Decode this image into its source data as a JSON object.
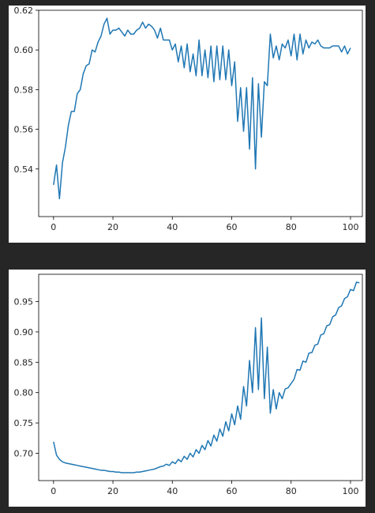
{
  "chart_data": [
    {
      "type": "line",
      "title": "",
      "xlabel": "",
      "ylabel": "",
      "xlim": [
        -5,
        104
      ],
      "ylim": [
        0.516,
        0.62
      ],
      "xticks": [
        0,
        20,
        40,
        60,
        80,
        100
      ],
      "yticks": [
        0.54,
        0.56,
        0.58,
        0.6,
        0.62
      ],
      "ytick_labels": [
        "0.54",
        "0.56",
        "0.58",
        "0.60",
        "0.62"
      ],
      "grid": false,
      "legend": "none",
      "color": "#1f77b4",
      "series": [
        {
          "values": [
            0.532,
            0.542,
            0.525,
            0.543,
            0.551,
            0.562,
            0.569,
            0.569,
            0.578,
            0.58,
            0.588,
            0.592,
            0.593,
            0.6,
            0.599,
            0.604,
            0.607,
            0.613,
            0.616,
            0.608,
            0.61,
            0.61,
            0.611,
            0.609,
            0.607,
            0.61,
            0.608,
            0.608,
            0.61,
            0.611,
            0.614,
            0.611,
            0.613,
            0.612,
            0.61,
            0.606,
            0.611,
            0.605,
            0.605,
            0.605,
            0.6,
            0.603,
            0.594,
            0.602,
            0.591,
            0.603,
            0.589,
            0.598,
            0.587,
            0.605,
            0.587,
            0.6,
            0.586,
            0.602,
            0.584,
            0.602,
            0.585,
            0.602,
            0.585,
            0.6,
            0.582,
            0.594,
            0.564,
            0.581,
            0.559,
            0.581,
            0.55,
            0.586,
            0.54,
            0.583,
            0.556,
            0.584,
            0.582,
            0.608,
            0.596,
            0.602,
            0.595,
            0.603,
            0.601,
            0.605,
            0.597,
            0.608,
            0.595,
            0.608,
            0.598,
            0.605,
            0.601,
            0.604,
            0.603,
            0.605,
            0.602,
            0.601,
            0.601,
            0.601,
            0.602,
            0.602,
            0.602,
            0.599,
            0.602,
            0.598,
            0.601
          ]
        }
      ]
    },
    {
      "type": "line",
      "title": "",
      "xlabel": "",
      "ylabel": "",
      "xlim": [
        -5,
        104
      ],
      "ylim": [
        0.655,
        0.995
      ],
      "xticks": [
        0,
        20,
        40,
        60,
        80,
        100
      ],
      "yticks": [
        0.7,
        0.75,
        0.8,
        0.85,
        0.9,
        0.95
      ],
      "ytick_labels": [
        "0.70",
        "0.75",
        "0.80",
        "0.85",
        "0.90",
        "0.95"
      ],
      "grid": false,
      "legend": "none",
      "color": "#1f77b4",
      "series": [
        {
          "values": [
            0.719,
            0.697,
            0.69,
            0.686,
            0.684,
            0.683,
            0.682,
            0.681,
            0.68,
            0.679,
            0.678,
            0.677,
            0.676,
            0.675,
            0.674,
            0.673,
            0.672,
            0.672,
            0.671,
            0.67,
            0.67,
            0.669,
            0.669,
            0.668,
            0.668,
            0.668,
            0.668,
            0.668,
            0.669,
            0.669,
            0.67,
            0.671,
            0.672,
            0.673,
            0.674,
            0.676,
            0.678,
            0.679,
            0.682,
            0.68,
            0.686,
            0.683,
            0.69,
            0.686,
            0.695,
            0.69,
            0.7,
            0.694,
            0.706,
            0.7,
            0.713,
            0.706,
            0.721,
            0.712,
            0.73,
            0.72,
            0.74,
            0.728,
            0.752,
            0.737,
            0.765,
            0.747,
            0.778,
            0.756,
            0.81,
            0.778,
            0.853,
            0.8,
            0.907,
            0.805,
            0.923,
            0.79,
            0.875,
            0.766,
            0.805,
            0.773,
            0.8,
            0.79,
            0.806,
            0.808,
            0.815,
            0.822,
            0.838,
            0.837,
            0.852,
            0.85,
            0.865,
            0.866,
            0.878,
            0.88,
            0.895,
            0.897,
            0.91,
            0.912,
            0.925,
            0.928,
            0.94,
            0.943,
            0.955,
            0.958,
            0.97,
            0.968,
            0.982,
            0.981
          ]
        }
      ]
    }
  ]
}
